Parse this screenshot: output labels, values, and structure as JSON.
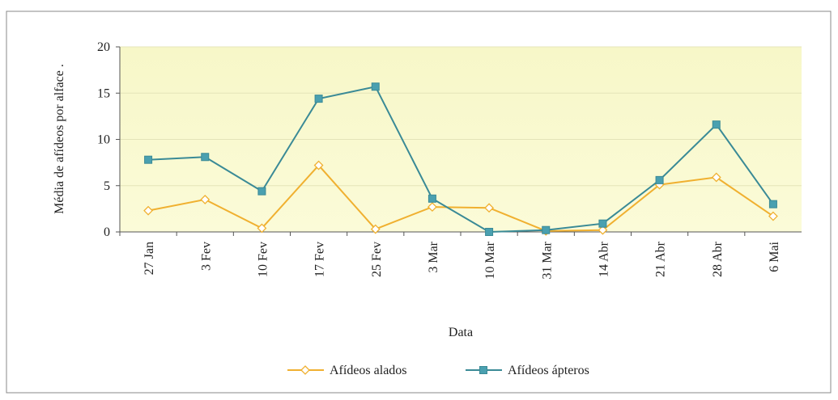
{
  "chart_data": {
    "type": "line",
    "x_label": "Data",
    "y_label": "Média de afídeos por alface .",
    "categories": [
      "27 Jan",
      "3 Fev",
      "10 Fev",
      "17 Fev",
      "25 Fev",
      "3 Mar",
      "10 Mar",
      "31 Mar",
      "14 Abr",
      "21 Abr",
      "28 Abr",
      "6 Mai"
    ],
    "series": [
      {
        "name": "Afídeos alados",
        "color": "#f0b030",
        "marker": "diamond",
        "values": [
          2.3,
          3.5,
          0.4,
          7.2,
          0.3,
          2.7,
          2.6,
          0.1,
          0.2,
          5.1,
          5.9,
          1.7
        ]
      },
      {
        "name": "Afídeos ápteros",
        "color": "#3a8a96",
        "marker": "square",
        "values": [
          7.8,
          8.1,
          4.4,
          14.4,
          15.7,
          3.6,
          0,
          0.2,
          0.9,
          5.6,
          11.6,
          3.0
        ]
      }
    ],
    "ylim": [
      0,
      20
    ],
    "yticks": [
      0,
      5,
      10,
      15,
      20
    ],
    "grid": true,
    "legend": "bottom"
  }
}
